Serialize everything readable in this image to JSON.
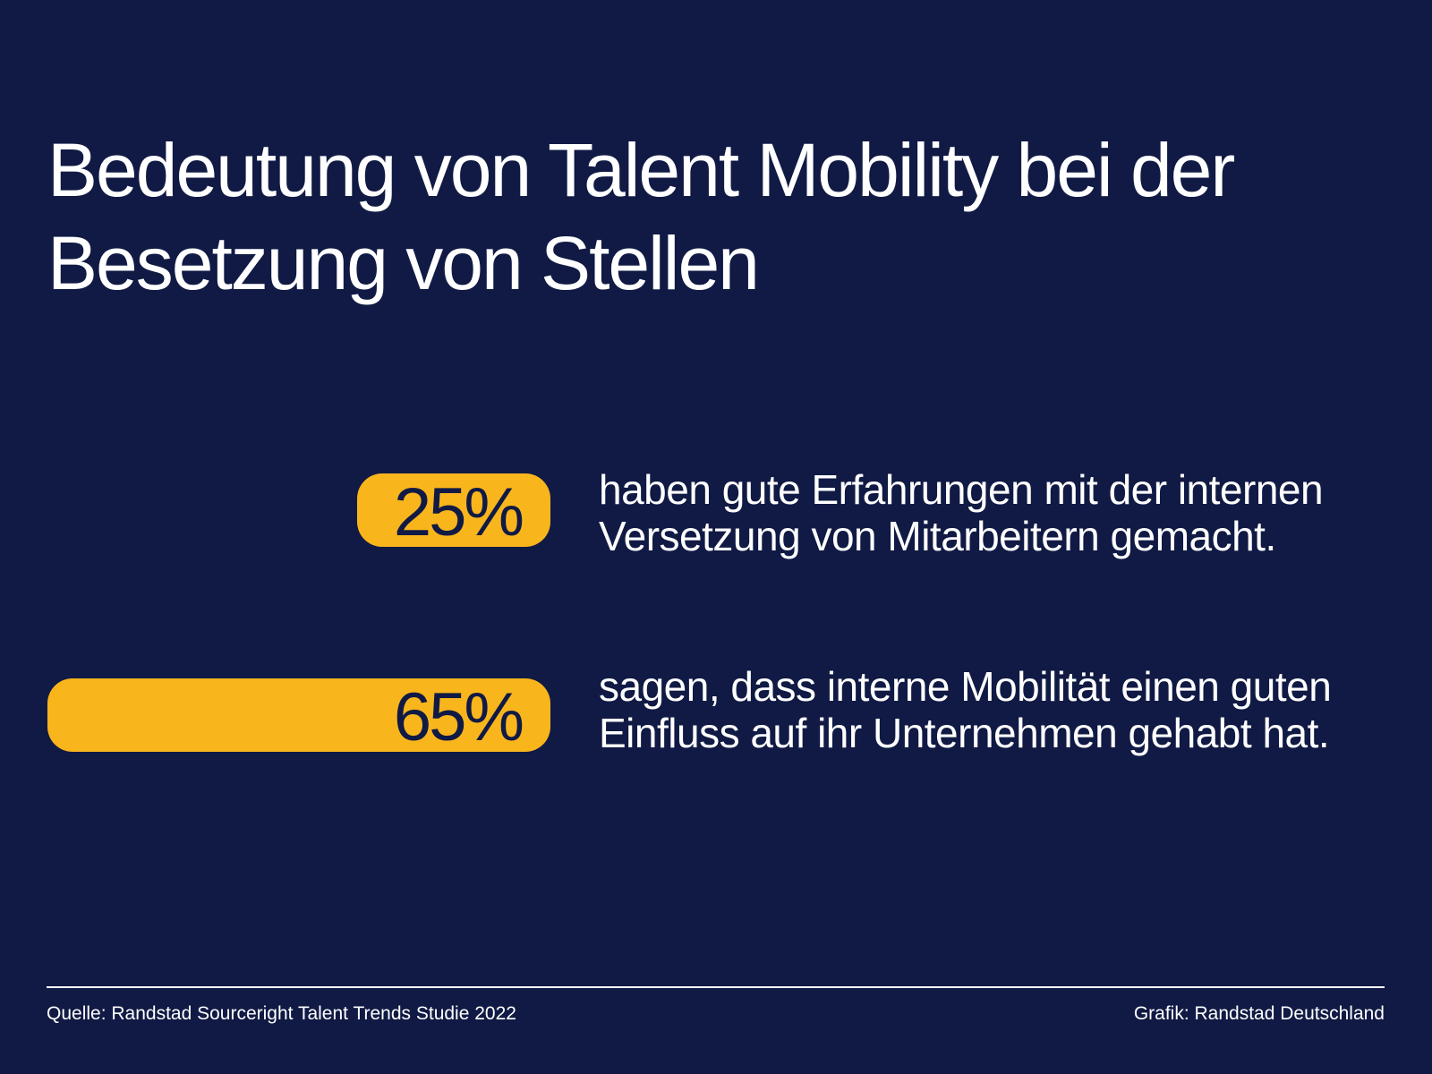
{
  "colors": {
    "background": "#101a44",
    "bar": "#f9b51c",
    "text": "#ffffff",
    "bar_text": "#101a44"
  },
  "chart_data": {
    "type": "bar",
    "orientation": "horizontal",
    "title": "Bedeutung von Talent Mobility bei der Besetzung von Stellen",
    "categories": [
      "haben gute Erfahrungen mit der internen Versetzung von Mitarbeitern gemacht.",
      "sagen, dass interne Mobilität einen guten Einfluss auf ihr Unternehmen gehabt hat."
    ],
    "values": [
      25,
      65
    ],
    "value_labels": [
      "25%",
      "65%"
    ],
    "unit": "%",
    "xlim": [
      0,
      100
    ],
    "grid": false
  },
  "footer": {
    "source": "Quelle: Randstad Sourceright Talent Trends Studie 2022",
    "credit": "Grafik: Randstad Deutschland"
  }
}
